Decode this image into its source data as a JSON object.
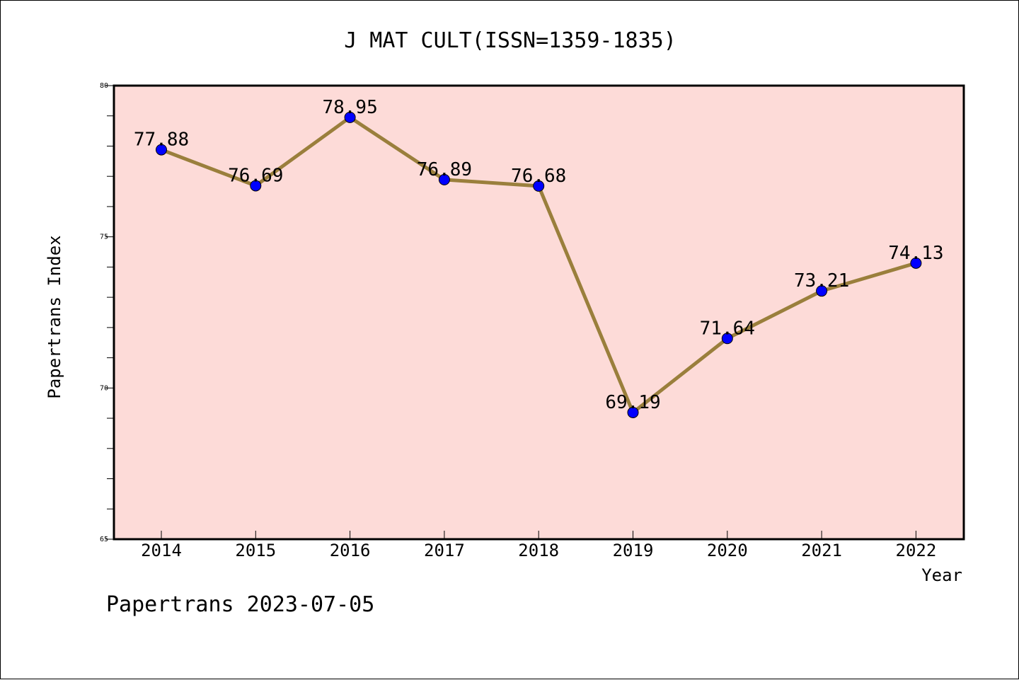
{
  "chart_data": {
    "type": "line",
    "title": "J MAT CULT(ISSN=1359-1835)",
    "xlabel": "Year",
    "ylabel": "Papertrans Index",
    "categories": [
      "2014",
      "2015",
      "2016",
      "2017",
      "2018",
      "2019",
      "2020",
      "2021",
      "2022"
    ],
    "series": [
      {
        "values": [
          77.88,
          76.69,
          78.95,
          76.89,
          76.68,
          69.19,
          71.64,
          73.21,
          74.13
        ],
        "data_labels": [
          "77.88",
          "76.69",
          "78.95",
          "76.89",
          "76.68",
          "69.19",
          "71.64",
          "73.21",
          "74.13"
        ],
        "line_color": "#9a7f3c",
        "marker_color": "#0000ff"
      }
    ],
    "ylim": [
      65,
      80
    ],
    "yticks": [
      65,
      70,
      75,
      80
    ],
    "ytick_labels": [
      "65",
      "70",
      "75",
      "80"
    ],
    "plot_background": "#fddbd8",
    "grid": false
  },
  "footer": {
    "text": "Papertrans 2023-07-05"
  }
}
